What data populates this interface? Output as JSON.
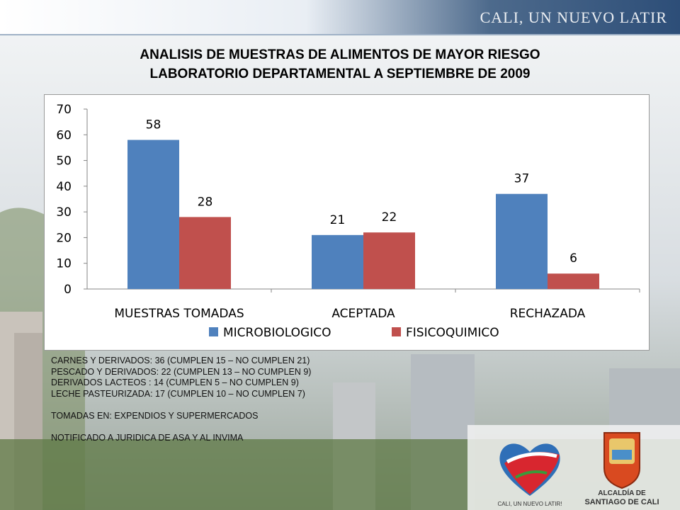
{
  "banner": {
    "text": "CALI, UN NUEVO LATIR"
  },
  "title": {
    "line1": "ANALISIS DE MUESTRAS DE ALIMENTOS DE MAYOR RIESGO",
    "line2": "LABORATORIO DEPARTAMENTAL A SEPTIEMBRE DE 2009"
  },
  "chart_data": {
    "type": "bar",
    "categories": [
      "MUESTRAS TOMADAS",
      "ACEPTADA",
      "RECHAZADA"
    ],
    "series": [
      {
        "name": "MICROBIOLOGICO",
        "values": [
          58,
          21,
          37
        ],
        "color": "#4f81bd"
      },
      {
        "name": "FISICOQUIMICO",
        "values": [
          28,
          22,
          6
        ],
        "color": "#c0504d"
      }
    ],
    "yticks": [
      0,
      10,
      20,
      30,
      40,
      50,
      60,
      70
    ],
    "ylim": [
      0,
      70
    ],
    "grid": false,
    "legend": "bottom",
    "data_labels": true
  },
  "notes": [
    "CARNES Y DERIVADOS: 36  (CUMPLEN 15 – NO CUMPLEN 21)",
    "PESCADO Y DERIVADOS: 22 (CUMPLEN 13 – NO CUMPLEN 9)",
    "DERIVADOS LACTEOS : 14 (CUMPLEN 5 – NO CUMPLEN 9)",
    "LECHE PASTEURIZADA: 17 (CUMPLEN 10 – NO CUMPLEN 7)",
    "",
    "TOMADAS EN: EXPENDIOS Y SUPERMERCADOS",
    "",
    "NOTIFICADO A JURIDICA DE ASA Y AL INVIMA"
  ],
  "logos": {
    "heart_caption": "CALI, UN NUEVO LATIR!",
    "seal_caption_1": "ALCALDÍA DE",
    "seal_caption_2": "SANTIAGO DE CALI"
  }
}
